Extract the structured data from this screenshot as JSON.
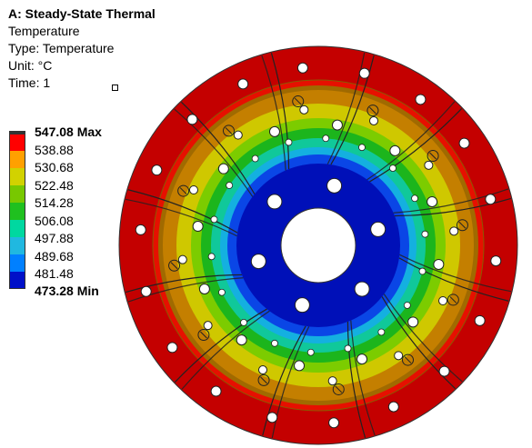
{
  "header": {
    "title": "A: Steady-State Thermal",
    "result": "Temperature",
    "type": "Type: Temperature",
    "unit": "Unit: °C",
    "time": "Time: 1"
  },
  "legend": {
    "labels": [
      "547.08 Max",
      "538.88",
      "530.68",
      "522.48",
      "514.28",
      "506.08",
      "497.88",
      "489.68",
      "481.48",
      "473.28 Min"
    ],
    "colors": [
      "#c60000",
      "#ff0000",
      "#ffa000",
      "#d2d200",
      "#78c800",
      "#1fc01f",
      "#00d8a0",
      "#20b8e0",
      "#0080ff",
      "#0010c8"
    ]
  },
  "model": {
    "contour_colors": {
      "outer": "#c40000",
      "red": "#e61000",
      "orange": "#c47f00",
      "yellow": "#cfc800",
      "lime": "#7ccc00",
      "green": "#1cb51c",
      "teal": "#10c89a",
      "cyan": "#14b0e0",
      "blue": "#0a46e6",
      "deep_blue": "#0010b8"
    }
  }
}
